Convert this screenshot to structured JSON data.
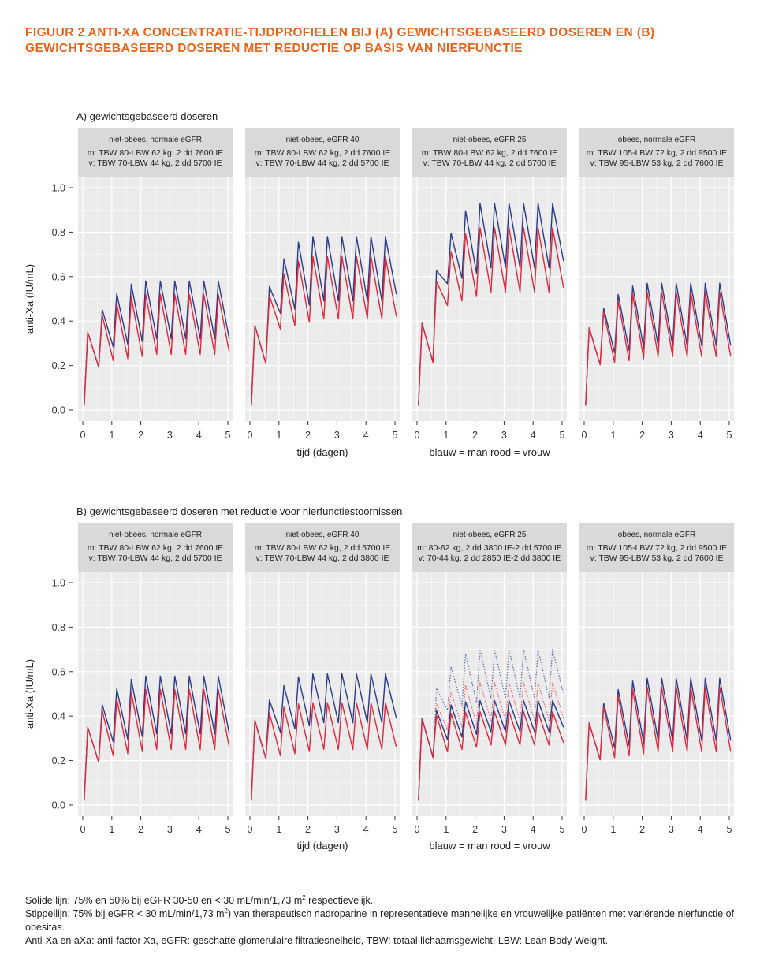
{
  "title": "FIGUUR 2  ANTI-XA CONCENTRATIE-TIJDPROFIELEN BIJ (A) GEWICHTSGEBASEERD DOSEREN EN (B) GEWICHTSGEBASEERD DOSEREN MET REDUCTIE OP BASIS VAN NIERFUNCTIE",
  "colors": {
    "title": "#e8641b",
    "man": "#2b3a86",
    "vrouw": "#e0283c",
    "panel_bg": "#ebebeb",
    "strip_bg": "#d9d9d9"
  },
  "chart_data": [
    {
      "type": "line",
      "section_label": "A) gewichtsgebaseerd doseren",
      "ylabel": "anti-Xa (IU/mL)",
      "xlabel": "tijd (dagen)",
      "legend_note": "blauw = man      rood = vrouw",
      "xlim": [
        0,
        5
      ],
      "ylim": [
        0,
        1.0
      ],
      "x_ticks": [
        "0",
        "1",
        "2",
        "3",
        "4",
        "5"
      ],
      "y_ticks": [
        "0.0",
        "0.2",
        "0.4",
        "0.6",
        "0.8",
        "1.0"
      ],
      "grid": true,
      "facets": [
        {
          "strip": [
            "niet-obees, normale eGFR",
            "m:  TBW 80-LBW 62 kg, 2 dd 7600 IE",
            "v:  TBW 70-LBW 44 kg, 2 dd 5700 IE"
          ],
          "series": [
            {
              "name": "man",
              "style": "solid",
              "first_peak": 0.35,
              "peak": 0.58,
              "trough": 0.32,
              "end": 0.32
            },
            {
              "name": "vrouw",
              "style": "solid",
              "first_peak": 0.35,
              "peak": 0.52,
              "trough": 0.25,
              "end": 0.26
            }
          ]
        },
        {
          "strip": [
            "niet-obees, eGFR 40",
            "m:  TBW 80-LBW 62 kg, 2 dd 7600 IE",
            "v:  TBW 70-LBW 44 kg, 2 dd 5700 IE"
          ],
          "series": [
            {
              "name": "man",
              "style": "solid",
              "first_peak": 0.38,
              "peak": 0.78,
              "trough": 0.49,
              "end": 0.52
            },
            {
              "name": "vrouw",
              "style": "solid",
              "first_peak": 0.38,
              "peak": 0.69,
              "trough": 0.41,
              "end": 0.42
            }
          ]
        },
        {
          "strip": [
            "niet-obees, eGFR 25",
            "m:  TBW 80-LBW 62 kg, 2 dd 7600 IE",
            "v:  TBW 70-LBW 44 kg, 2 dd 5700 IE"
          ],
          "series": [
            {
              "name": "man",
              "style": "solid",
              "first_peak": 0.39,
              "peak": 0.93,
              "trough": 0.64,
              "end": 0.67
            },
            {
              "name": "vrouw",
              "style": "solid",
              "first_peak": 0.39,
              "peak": 0.82,
              "trough": 0.53,
              "end": 0.55
            }
          ]
        },
        {
          "strip": [
            "obees, normale eGFR",
            "m:  TBW 105-LBW 72 kg, 2 dd 9500 IE",
            "v:  TBW 95-LBW 53 kg, 2 dd 7600 IE"
          ],
          "series": [
            {
              "name": "man",
              "style": "solid",
              "first_peak": 0.37,
              "peak": 0.57,
              "trough": 0.29,
              "end": 0.29
            },
            {
              "name": "vrouw",
              "style": "solid",
              "first_peak": 0.37,
              "peak": 0.53,
              "trough": 0.24,
              "end": 0.24
            }
          ]
        }
      ]
    },
    {
      "type": "line",
      "section_label": "B) gewichtsgebaseerd doseren met reductie voor nierfunctiestoornissen",
      "ylabel": "anti-Xa (IU/mL)",
      "xlabel": "tijd (dagen)",
      "legend_note": "blauw = man      rood = vrouw",
      "xlim": [
        0,
        5
      ],
      "ylim": [
        0,
        1.0
      ],
      "x_ticks": [
        "0",
        "1",
        "2",
        "3",
        "4",
        "5"
      ],
      "y_ticks": [
        "0.0",
        "0.2",
        "0.4",
        "0.6",
        "0.8",
        "1.0"
      ],
      "grid": true,
      "facets": [
        {
          "strip": [
            "niet-obees, normale eGFR",
            "m:  TBW 80-LBW 62 kg, 2 dd 7600 IE",
            "v:  TBW 70-LBW 44 kg, 2 dd 5700 IE"
          ],
          "series": [
            {
              "name": "man",
              "style": "solid",
              "first_peak": 0.35,
              "peak": 0.58,
              "trough": 0.32,
              "end": 0.32
            },
            {
              "name": "vrouw",
              "style": "solid",
              "first_peak": 0.35,
              "peak": 0.52,
              "trough": 0.25,
              "end": 0.26
            }
          ]
        },
        {
          "strip": [
            "niet-obees, eGFR 40",
            "m:  TBW 80-LBW 62 kg, 2 dd 5700 IE",
            "v:  TBW 70-LBW 44 kg, 2 dd 3800 IE"
          ],
          "series": [
            {
              "name": "man",
              "style": "solid",
              "first_peak": 0.38,
              "peak": 0.59,
              "trough": 0.37,
              "end": 0.39
            },
            {
              "name": "vrouw",
              "style": "solid",
              "first_peak": 0.38,
              "peak": 0.46,
              "trough": 0.25,
              "end": 0.26
            }
          ]
        },
        {
          "strip": [
            "niet-obees, eGFR 25",
            "m: 80-62 kg, 2 dd 3800 IE-2 dd 5700 IE",
            "v: 70-44 kg, 2 dd 2850 IE-2 dd 3800 IE"
          ],
          "series": [
            {
              "name": "man",
              "style": "solid",
              "first_peak": 0.39,
              "peak": 0.47,
              "trough": 0.33,
              "end": 0.35
            },
            {
              "name": "vrouw",
              "style": "solid",
              "first_peak": 0.39,
              "peak": 0.42,
              "trough": 0.27,
              "end": 0.28
            },
            {
              "name": "man",
              "style": "dotted",
              "first_peak": 0.39,
              "peak": 0.7,
              "trough": 0.48,
              "end": 0.5
            },
            {
              "name": "vrouw",
              "style": "dotted",
              "first_peak": 0.39,
              "peak": 0.55,
              "trough": 0.38,
              "end": 0.39
            }
          ]
        },
        {
          "strip": [
            "obees, normale eGFR",
            "m:  TBW 105-LBW 72 kg, 2 dd 9500 IE",
            "v:  TBW 95-LBW 53 kg, 2 dd 7600 IE"
          ],
          "series": [
            {
              "name": "man",
              "style": "solid",
              "first_peak": 0.37,
              "peak": 0.57,
              "trough": 0.29,
              "end": 0.29
            },
            {
              "name": "vrouw",
              "style": "solid",
              "first_peak": 0.37,
              "peak": 0.53,
              "trough": 0.24,
              "end": 0.24
            }
          ]
        }
      ]
    }
  ],
  "footer": {
    "line1_pre": "Solide lijn: 75% en 50% bij eGFR 30-50 en < 30 mL/min/1,73 m",
    "line1_sup": "2",
    "line1_post": " respectievelijk.",
    "line2_pre": "Stippellijn: 75% bij eGFR < 30 mL/min/1,73 m",
    "line2_sup": "2",
    "line2_post": ") van therapeutisch nadroparine in representatieve mannelijke en vrouwelijke patiënten met variërende nierfunctie of obesitas.",
    "line3": "Anti-Xa en aXa: anti-factor Xa, eGFR: geschatte glomerulaire filtratiesnelheid, TBW: totaal lichaamsgewicht, LBW: Lean Body Weight."
  }
}
